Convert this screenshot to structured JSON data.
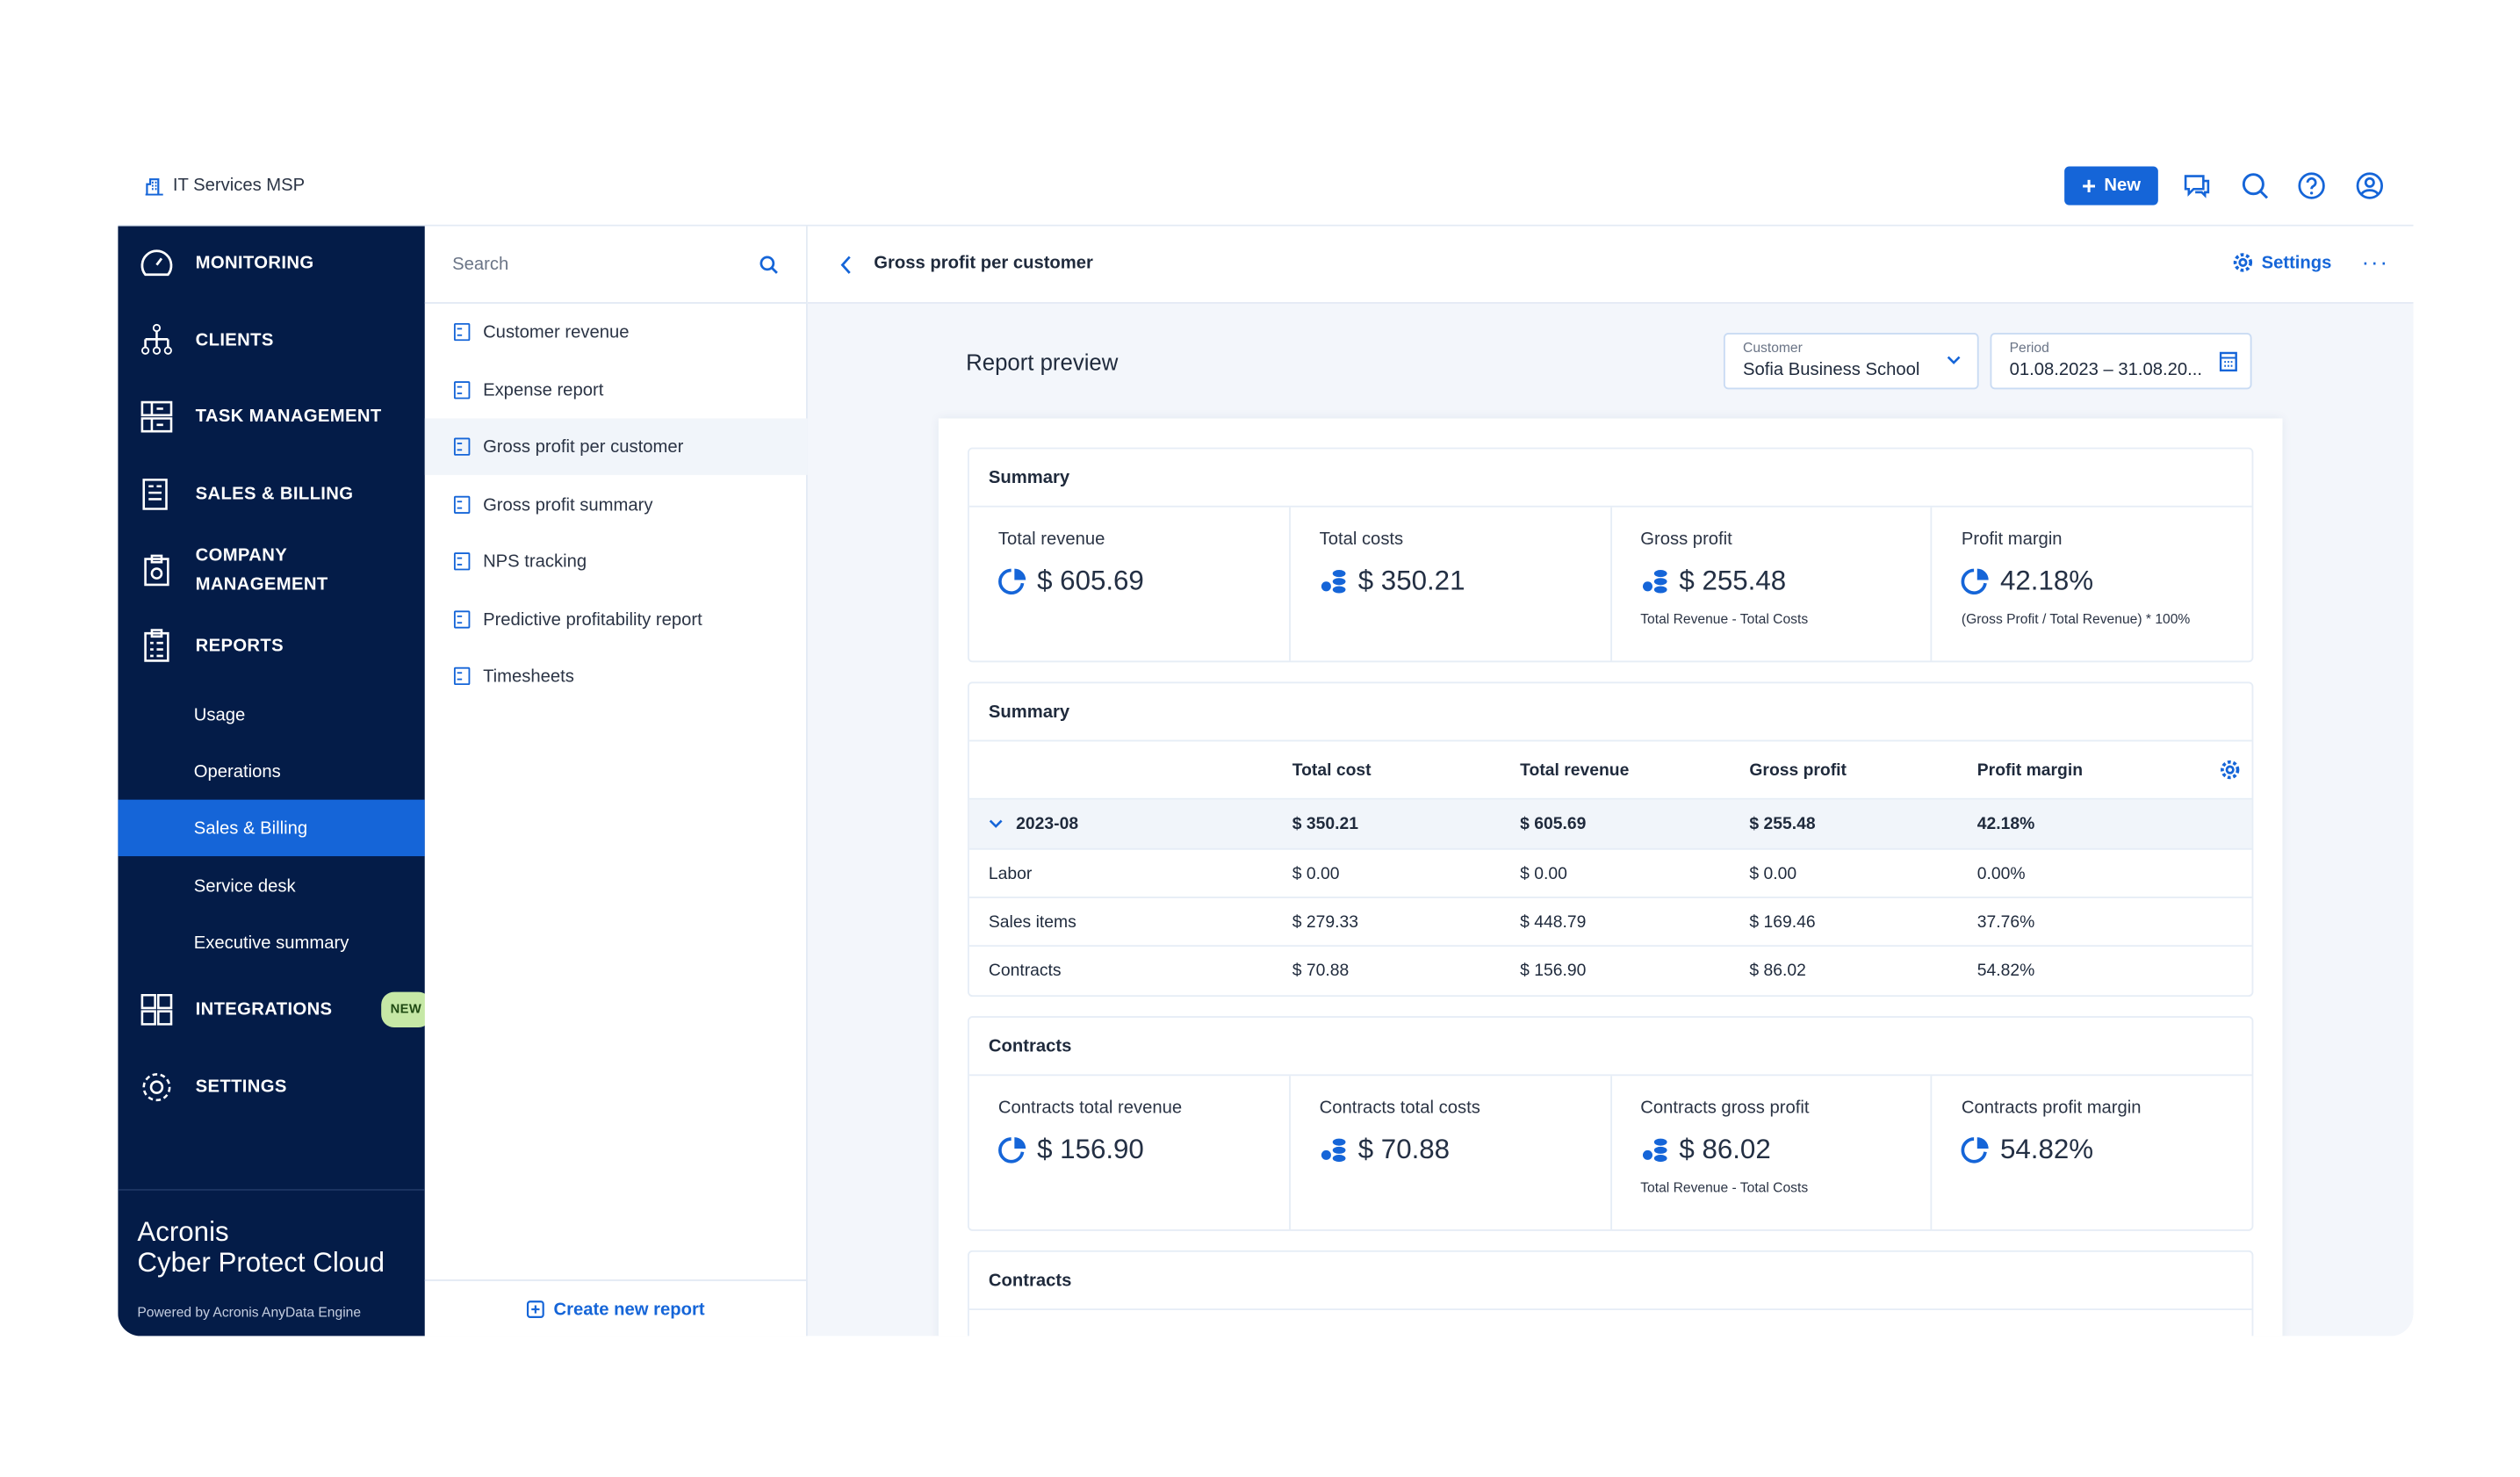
{
  "topbar": {
    "org": "IT Services MSP",
    "new_label": "New"
  },
  "sidebar": {
    "items": [
      {
        "label": "MONITORING"
      },
      {
        "label": "CLIENTS"
      },
      {
        "label": "TASK MANAGEMENT"
      },
      {
        "label": "SALES & BILLING"
      },
      {
        "label": "COMPANY MANAGEMENT"
      },
      {
        "label": "REPORTS"
      },
      {
        "label": "INTEGRATIONS",
        "badge": "NEW"
      },
      {
        "label": "SETTINGS"
      }
    ],
    "report_subitems": [
      "Usage",
      "Operations",
      "Sales & Billing",
      "Service desk",
      "Executive summary"
    ],
    "selected": "Sales & Billing",
    "brand1": "Acronis",
    "brand2": "Cyber Protect Cloud",
    "powered": "Powered by Acronis AnyData Engine"
  },
  "reports_list": {
    "search_placeholder": "Search",
    "items": [
      "Customer revenue",
      "Expense report",
      "Gross profit per customer",
      "Gross profit summary",
      "NPS tracking",
      "Predictive profitability report",
      "Timesheets"
    ],
    "selected": "Gross profit per customer",
    "create_label": "Create new report"
  },
  "header": {
    "title": "Gross profit per customer",
    "settings_label": "Settings"
  },
  "preview": {
    "title": "Report preview",
    "customer_label": "Customer",
    "customer_value": "Sofia Business School",
    "period_label": "Period",
    "period_value": "01.08.2023 – 31.08.20..."
  },
  "summary": {
    "title": "Summary",
    "kpis": [
      {
        "label": "Total revenue",
        "value": "$ 605.69",
        "note": "",
        "icon": "pie"
      },
      {
        "label": "Total costs",
        "value": "$ 350.21",
        "note": "",
        "icon": "coins"
      },
      {
        "label": "Gross profit",
        "value": "$ 255.48",
        "note": "Total Revenue - Total Costs",
        "icon": "coins"
      },
      {
        "label": "Profit margin",
        "value": "42.18%",
        "note": "(Gross Profit / Total Revenue) * 100%",
        "icon": "pie"
      }
    ]
  },
  "table": {
    "title": "Summary",
    "columns": [
      "",
      "Total cost",
      "Total revenue",
      "Gross profit",
      "Profit margin"
    ],
    "rows": [
      [
        "2023-08",
        "$ 350.21",
        "$ 605.69",
        "$ 255.48",
        "42.18%"
      ],
      [
        "Labor",
        "$ 0.00",
        "$ 0.00",
        "$ 0.00",
        "0.00%"
      ],
      [
        "Sales items",
        "$ 279.33",
        "$ 448.79",
        "$ 169.46",
        "37.76%"
      ],
      [
        "Contracts",
        "$ 70.88",
        "$ 156.90",
        "$ 86.02",
        "54.82%"
      ]
    ]
  },
  "contracts": {
    "title": "Contracts",
    "kpis": [
      {
        "label": "Contracts total revenue",
        "value": "$ 156.90",
        "note": "",
        "icon": "pie"
      },
      {
        "label": "Contracts total costs",
        "value": "$ 70.88",
        "note": "",
        "icon": "coins"
      },
      {
        "label": "Contracts gross profit",
        "value": "$ 86.02",
        "note": "Total Revenue - Total Costs",
        "icon": "coins"
      },
      {
        "label": "Contracts profit margin",
        "value": "54.82%",
        "note": "",
        "icon": "pie"
      }
    ]
  },
  "contracts2": {
    "title": "Contracts"
  }
}
